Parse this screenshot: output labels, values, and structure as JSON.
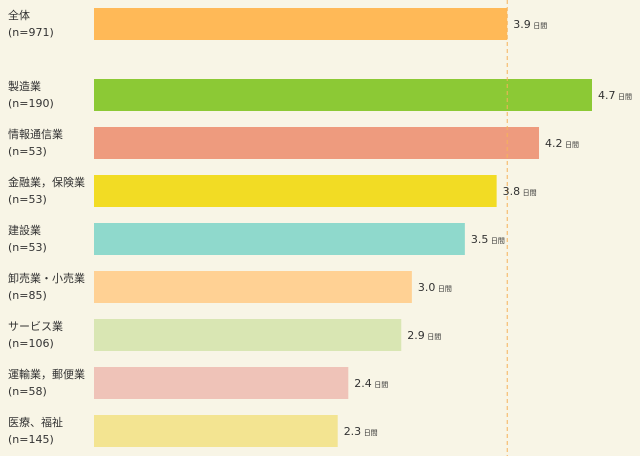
{
  "chart_data": {
    "type": "bar",
    "orientation": "horizontal",
    "unit": "日間",
    "categories": [
      {
        "name": "全体",
        "n": "(n=971)",
        "value": 3.9,
        "value_label": "3.9",
        "color": "#ffb957"
      },
      {
        "name": "製造業",
        "n": "(n=190)",
        "value": 4.7,
        "value_label": "4.7",
        "color": "#8cc935"
      },
      {
        "name": "情報通信業",
        "n": "(n=53)",
        "value": 4.2,
        "value_label": "4.2",
        "color": "#ee9b7e"
      },
      {
        "name": "金融業，保険業",
        "n": "(n=53)",
        "value": 3.8,
        "value_label": "3.8",
        "color": "#f2dc24"
      },
      {
        "name": "建設業",
        "n": "(n=53)",
        "value": 3.5,
        "value_label": "3.5",
        "color": "#8fd9cc"
      },
      {
        "name": "卸売業・小売業",
        "n": "(n=85)",
        "value": 3.0,
        "value_label": "3.0",
        "color": "#ffd194"
      },
      {
        "name": "サービス業",
        "n": "(n=106)",
        "value": 2.9,
        "value_label": "2.9",
        "color": "#d9e6b3"
      },
      {
        "name": "運輸業，郵便業",
        "n": "(n=58)",
        "value": 2.4,
        "value_label": "2.4",
        "color": "#efc3b8"
      },
      {
        "name": "医療、福祉",
        "n": "(n=145)",
        "value": 2.3,
        "value_label": "2.3",
        "color": "#f3e491"
      }
    ],
    "reference_line": {
      "value": 3.9,
      "color": "#f5b35a"
    },
    "xlim": [
      0,
      4.7
    ],
    "grid": false,
    "title": "",
    "xlabel": "",
    "ylabel": ""
  }
}
